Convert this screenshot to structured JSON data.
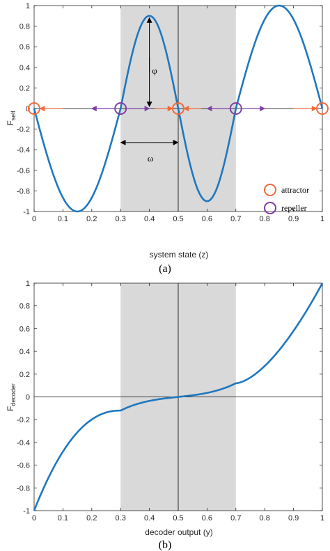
{
  "chart_data": [
    {
      "type": "line",
      "caption": "(a)",
      "xlabel": "system state (z)",
      "ylabel": "F",
      "ylabel_sub": "self",
      "xlim": [
        0,
        1
      ],
      "ylim": [
        -1,
        1
      ],
      "xticks": [
        "0",
        "0.1",
        "0.2",
        "0.3",
        "0.4",
        "0.5",
        "0.6",
        "0.7",
        "0.8",
        "0.9",
        "1"
      ],
      "yticks": [
        "-1",
        "-0.8",
        "-0.6",
        "-0.4",
        "-0.2",
        "0",
        "0.2",
        "0.4",
        "0.6",
        "0.8",
        "1"
      ],
      "shaded_region": [
        0.3,
        0.7
      ],
      "grid": false,
      "series": [
        {
          "color": "#1f77be",
          "x": [
            0,
            0.05,
            0.1,
            0.15,
            0.2,
            0.25,
            0.3,
            0.35,
            0.4,
            0.45,
            0.5,
            0.55,
            0.6,
            0.65,
            0.7,
            0.75,
            0.8,
            0.85,
            0.9,
            0.95,
            1
          ],
          "y": [
            0,
            -0.5,
            -0.87,
            -1,
            -0.87,
            -0.5,
            0,
            0.5,
            0.9,
            0.55,
            0,
            -0.55,
            -0.9,
            -0.5,
            0,
            0.5,
            0.87,
            1,
            0.87,
            0.5,
            0
          ]
        }
      ],
      "attractors": [
        0,
        0.5,
        1
      ],
      "repellers": [
        0.3,
        0.7
      ],
      "annotations": {
        "phi": "φ",
        "omega": "ω"
      },
      "legend": {
        "position": "bottom-right",
        "entries": [
          "attractor",
          "repeller"
        ]
      },
      "colors": {
        "attractor": "#f06a3c",
        "repeller": "#7e3fa8",
        "curve": "#1f77be",
        "shade": "#d9d9d9"
      }
    },
    {
      "type": "line",
      "caption": "(b)",
      "xlabel": "decoder output (y)",
      "ylabel": "F",
      "ylabel_sub": "decoder",
      "xlim": [
        0,
        1
      ],
      "ylim": [
        -1,
        1
      ],
      "xticks": [
        "0",
        "0.1",
        "0.2",
        "0.3",
        "0.4",
        "0.5",
        "0.6",
        "0.7",
        "0.8",
        "0.9",
        "1"
      ],
      "yticks": [
        "-1",
        "-0.8",
        "-0.6",
        "-0.4",
        "-0.2",
        "0",
        "0.2",
        "0.4",
        "0.6",
        "0.8",
        "1"
      ],
      "shaded_region": [
        0.3,
        0.7
      ],
      "grid": false,
      "series": [
        {
          "color": "#1f77be",
          "x": [
            0,
            0.05,
            0.1,
            0.15,
            0.2,
            0.25,
            0.3,
            0.35,
            0.4,
            0.45,
            0.5,
            0.55,
            0.6,
            0.65,
            0.7,
            0.75,
            0.8,
            0.85,
            0.9,
            0.95,
            1
          ],
          "y": [
            -1,
            -0.68,
            -0.45,
            -0.3,
            -0.2,
            -0.15,
            -0.12,
            -0.08,
            -0.05,
            -0.02,
            0,
            0.02,
            0.05,
            0.09,
            0.13,
            0.2,
            0.3,
            0.45,
            0.6,
            0.78,
            1
          ]
        }
      ],
      "colors": {
        "curve": "#1f77be",
        "shade": "#d9d9d9"
      }
    }
  ]
}
